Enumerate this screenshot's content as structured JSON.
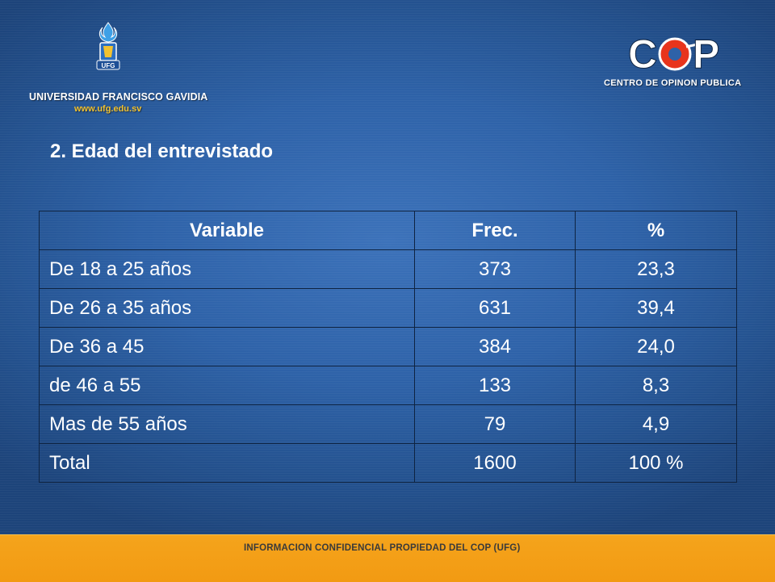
{
  "header": {
    "left_logo": {
      "emblem_text": "UFG",
      "name": "UNIVERSIDAD FRANCISCO GAVIDIA",
      "url": "www.ufg.edu.sv"
    },
    "right_logo": {
      "mark": "COP",
      "name": "CENTRO DE OPINON PUBLICA"
    }
  },
  "title": "2. Edad del entrevistado",
  "table": {
    "headers": [
      "Variable",
      "Frec.",
      "%"
    ],
    "rows": [
      [
        "De  18 a 25 años",
        "373",
        "23,3"
      ],
      [
        "De 26 a 35 años",
        "631",
        "39,4"
      ],
      [
        "De 36 a 45",
        "384",
        "24,0"
      ],
      [
        "de 46 a 55",
        "133",
        "8,3"
      ],
      [
        "Mas de 55 años",
        "79",
        "4,9"
      ],
      [
        "Total",
        "1600",
        "100 %"
      ]
    ]
  },
  "footer": {
    "text": "INFORMACION CONFIDENCIAL PROPIEDAD DEL COP (UFG)"
  },
  "colors": {
    "background": "#2e62a8",
    "footer": "#f5a41c",
    "cop_accent": "#e8341c",
    "text": "#ffffff"
  }
}
